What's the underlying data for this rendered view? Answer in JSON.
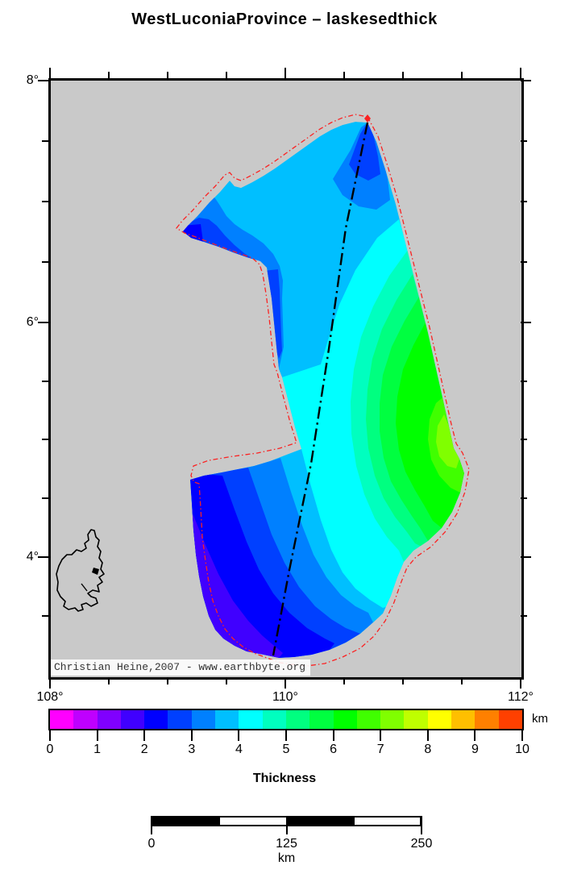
{
  "title": "WestLuconiaProvince – laskesedthick",
  "map": {
    "copyright": "Christian Heine,2007 - www.earthbyte.org",
    "axis": {
      "lat": [
        "8°",
        "6°",
        "4°"
      ],
      "lon": [
        "108°",
        "110°",
        "112°"
      ]
    }
  },
  "colors": {
    "map_background": "#c9c9c9",
    "frame": "#000000",
    "boundary": "#fb2222",
    "profile_line": "#000000",
    "coastline": "#000000"
  },
  "palette": {
    "b15": "#4000ff",
    "b20": "#0000ff",
    "b25": "#0040ff",
    "b30": "#0080ff",
    "b35": "#00bfff",
    "b40": "#00ffff",
    "b45": "#00ffbf",
    "b50": "#00ff80",
    "b55": "#00ff40",
    "b60": "#00ff00",
    "b65": "#40ff00",
    "b70": "#80ff00"
  },
  "colorbar": {
    "caption": "Thickness",
    "unit": "km",
    "tick_labels": [
      "0",
      "1",
      "2",
      "3",
      "4",
      "5",
      "6",
      "7",
      "8",
      "9",
      "10"
    ],
    "segments": [
      "#ff00ff",
      "#bf00ff",
      "#8000ff",
      "#4000ff",
      "#0000ff",
      "#0040ff",
      "#0080ff",
      "#00bfff",
      "#00ffff",
      "#00ffbf",
      "#00ff80",
      "#00ff40",
      "#00ff00",
      "#40ff00",
      "#80ff00",
      "#bfff00",
      "#ffff00",
      "#ffbf00",
      "#ff8000",
      "#ff4000"
    ]
  },
  "scalebar": {
    "tick_labels": [
      "0",
      "125",
      "250"
    ],
    "unit": "km",
    "segment_colors": [
      "#000000",
      "#ffffff",
      "#000000",
      "#ffffff"
    ]
  },
  "chart_data": {
    "type": "heatmap",
    "title": "WestLuconiaProvince – laskesedthick",
    "variable": "Thickness",
    "unit": "km",
    "lon_axis_ticks_deg": [
      108,
      110,
      112
    ],
    "lat_axis_ticks_deg": [
      8,
      6,
      4
    ],
    "lon_range_deg": [
      108,
      112
    ],
    "lat_range_deg": [
      3,
      8
    ],
    "colorbar_range_km": [
      0,
      10
    ],
    "colorbar_tick_values_km": [
      0,
      1,
      2,
      3,
      4,
      5,
      6,
      7,
      8,
      9,
      10
    ],
    "colorbar_step_km": 0.5,
    "observed_thickness_range_km": [
      1.5,
      7.5
    ],
    "thickness_minimum_zone": "southwest lobe edge (~1.5-2 km, violet) and northwest arm tip (~2-2.5 km)",
    "thickness_maximum_zone": "east-central patch near 111.3E 5.2N (~7-7.5 km, yellow-green)",
    "distance_scale_km": [
      0,
      125,
      250
    ],
    "profile_line": "dash-dot line from northern apex (~110.7E 7.7N) to southern tip (~109.9E 3.1N)",
    "province_outline": "red dash-dot polygon enclosing the thickness raster"
  }
}
